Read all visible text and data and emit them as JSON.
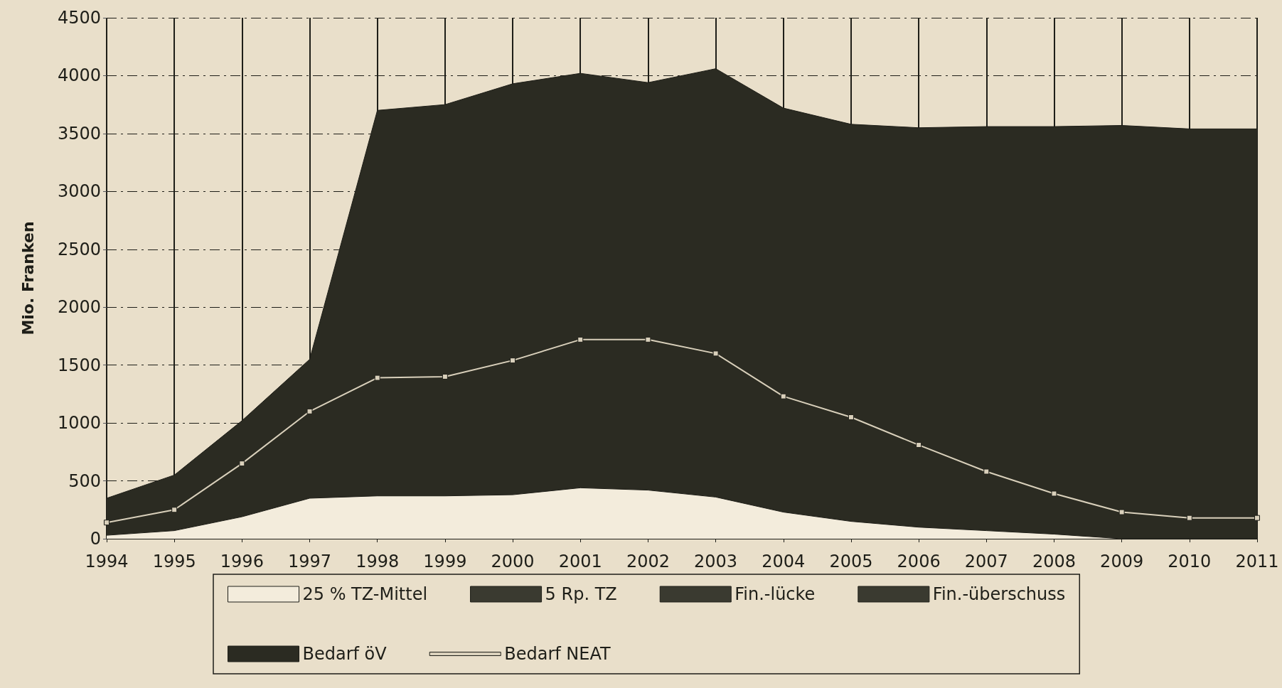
{
  "chart_data": {
    "type": "area",
    "ylabel": "Mio. Franken",
    "categories": [
      "1994",
      "1995",
      "1996",
      "1997",
      "1998",
      "1999",
      "2000",
      "2001",
      "2002",
      "2003",
      "2004",
      "2005",
      "2006",
      "2007",
      "2008",
      "2009",
      "2010",
      "2011"
    ],
    "ylim": [
      0,
      4500
    ],
    "yticks": [
      0,
      500,
      1000,
      1500,
      2000,
      2500,
      3000,
      3500,
      4000,
      4500
    ],
    "grid": true,
    "legend": "bottom",
    "series": [
      {
        "name": "25 % TZ-Mittel",
        "color": "#f3ecdc",
        "values": [
          30,
          70,
          190,
          350,
          370,
          370,
          380,
          440,
          420,
          360,
          230,
          150,
          100,
          70,
          40,
          0,
          0,
          0
        ]
      },
      {
        "name": "5 Rp. TZ",
        "color": "#3a3a30",
        "values": [
          null,
          null,
          null,
          null,
          null,
          null,
          null,
          null,
          null,
          null,
          null,
          null,
          null,
          null,
          null,
          null,
          null,
          null
        ]
      },
      {
        "name": "Fin.-lücke",
        "color": "#3a3a30",
        "values": [
          null,
          null,
          null,
          null,
          null,
          null,
          null,
          null,
          null,
          null,
          null,
          null,
          null,
          null,
          null,
          null,
          null,
          null
        ]
      },
      {
        "name": "Fin.-überschuss",
        "color": "#3a3a30",
        "values": [
          null,
          null,
          null,
          null,
          null,
          null,
          null,
          null,
          null,
          null,
          null,
          null,
          null,
          null,
          null,
          null,
          null,
          null
        ]
      },
      {
        "name": "Bedarf öV",
        "color": "#2b2b22",
        "values": [
          350,
          550,
          1020,
          1550,
          3700,
          3750,
          3930,
          4020,
          3940,
          4060,
          3720,
          3580,
          3550,
          3560,
          3560,
          3570,
          3540,
          3540
        ]
      },
      {
        "name": "Bedarf NEAT",
        "type": "line",
        "color": "#d9d0bb",
        "marker": "square",
        "values": [
          140,
          250,
          650,
          1100,
          1390,
          1400,
          1540,
          1720,
          1720,
          1600,
          1230,
          1050,
          810,
          580,
          390,
          230,
          180,
          180
        ]
      }
    ]
  }
}
